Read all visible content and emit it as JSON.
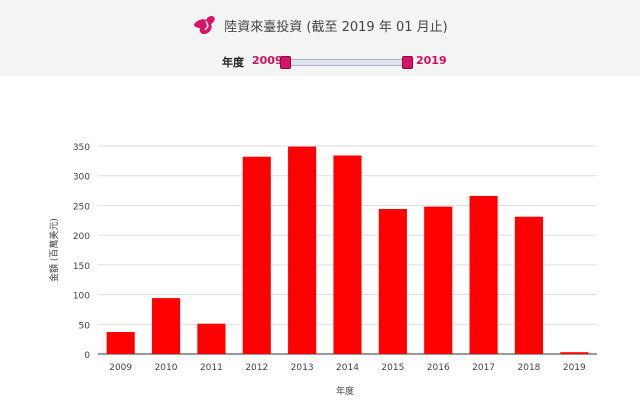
{
  "header": {
    "title": "陸資來臺投資 (截至 2019 年 01 月止)",
    "logo_icon": "taiwan-map-logo-icon",
    "accent_color": "#d60c5a"
  },
  "range_filter": {
    "label": "年度",
    "start": "2009",
    "end": "2019"
  },
  "chart_data": {
    "type": "bar",
    "categories": [
      "2009",
      "2010",
      "2011",
      "2012",
      "2013",
      "2014",
      "2015",
      "2016",
      "2017",
      "2018",
      "2019"
    ],
    "values": [
      37,
      94,
      51,
      332,
      349,
      334,
      244,
      248,
      266,
      231,
      3
    ],
    "xlabel": "年度",
    "ylabel": "金額 (百萬美元)",
    "ylim": [
      0,
      350
    ],
    "yticks": [
      "0",
      "50",
      "100",
      "150",
      "200",
      "250",
      "300",
      "350"
    ],
    "grid": true,
    "bar_color": "#ff0000"
  }
}
